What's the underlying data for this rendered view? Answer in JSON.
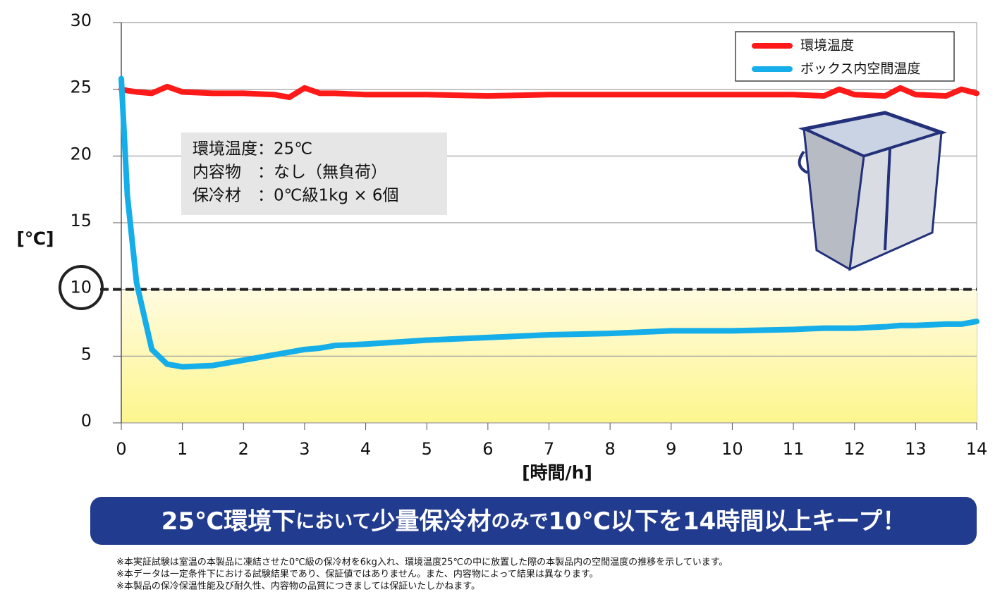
{
  "chart_data": {
    "type": "line",
    "x": [
      0,
      0.1,
      0.25,
      0.5,
      0.75,
      1,
      1.5,
      2,
      2.5,
      2.75,
      3,
      3.25,
      3.5,
      4,
      5,
      6,
      7,
      8,
      9,
      10,
      11,
      11.5,
      11.75,
      12,
      12.5,
      12.75,
      13,
      13.5,
      13.75,
      14
    ],
    "series": [
      {
        "name": "環境温度",
        "color": "#ff1a1a",
        "values": [
          25.0,
          24.9,
          24.8,
          24.7,
          25.2,
          24.8,
          24.7,
          24.7,
          24.6,
          24.4,
          25.1,
          24.7,
          24.7,
          24.6,
          24.6,
          24.5,
          24.6,
          24.6,
          24.6,
          24.6,
          24.6,
          24.5,
          25.0,
          24.6,
          24.5,
          25.1,
          24.6,
          24.5,
          25.0,
          24.7
        ]
      },
      {
        "name": "ボックス内空間温度",
        "color": "#16aee8",
        "values": [
          25.8,
          17,
          10.5,
          5.5,
          4.4,
          4.2,
          4.3,
          4.7,
          5.1,
          5.3,
          5.5,
          5.6,
          5.8,
          5.9,
          6.2,
          6.4,
          6.6,
          6.7,
          6.9,
          6.9,
          7.0,
          7.1,
          7.1,
          7.1,
          7.2,
          7.3,
          7.3,
          7.4,
          7.4,
          7.6
        ]
      }
    ],
    "xlim": [
      0,
      14
    ],
    "xticks": [
      0,
      1,
      2,
      3,
      4,
      5,
      6,
      7,
      8,
      9,
      10,
      11,
      12,
      13,
      14
    ],
    "ylim": [
      0,
      30
    ],
    "yticks": [
      0,
      5,
      10,
      15,
      20,
      25,
      30
    ],
    "grid": true,
    "threshold": 10,
    "xlabel": "[時間/h]",
    "ylabel": "[℃]",
    "annotation": [
      "環境温度：25℃",
      "内容物　：なし（無負荷）",
      "保冷材　：0℃級1kg × 6個"
    ],
    "banner": [
      "25℃環境下",
      "において",
      "少量保冷材",
      "のみで",
      "10℃以下を14時間以上キープ！"
    ],
    "notes": [
      "※本実証試験は室温の本製品に凍結させた0℃級の保冷材を6kg入れ、環境温度25℃の中に放置した際の本製品内の空間温度の推移を示しています。",
      "※本データは一定条件下における試験結果であり、保証値ではありません。また、内容物によって結果は異なります。",
      "※本製品の保冷保温性能及び耐久性、内容物の品質につきましては保証いたしかねます。"
    ]
  }
}
